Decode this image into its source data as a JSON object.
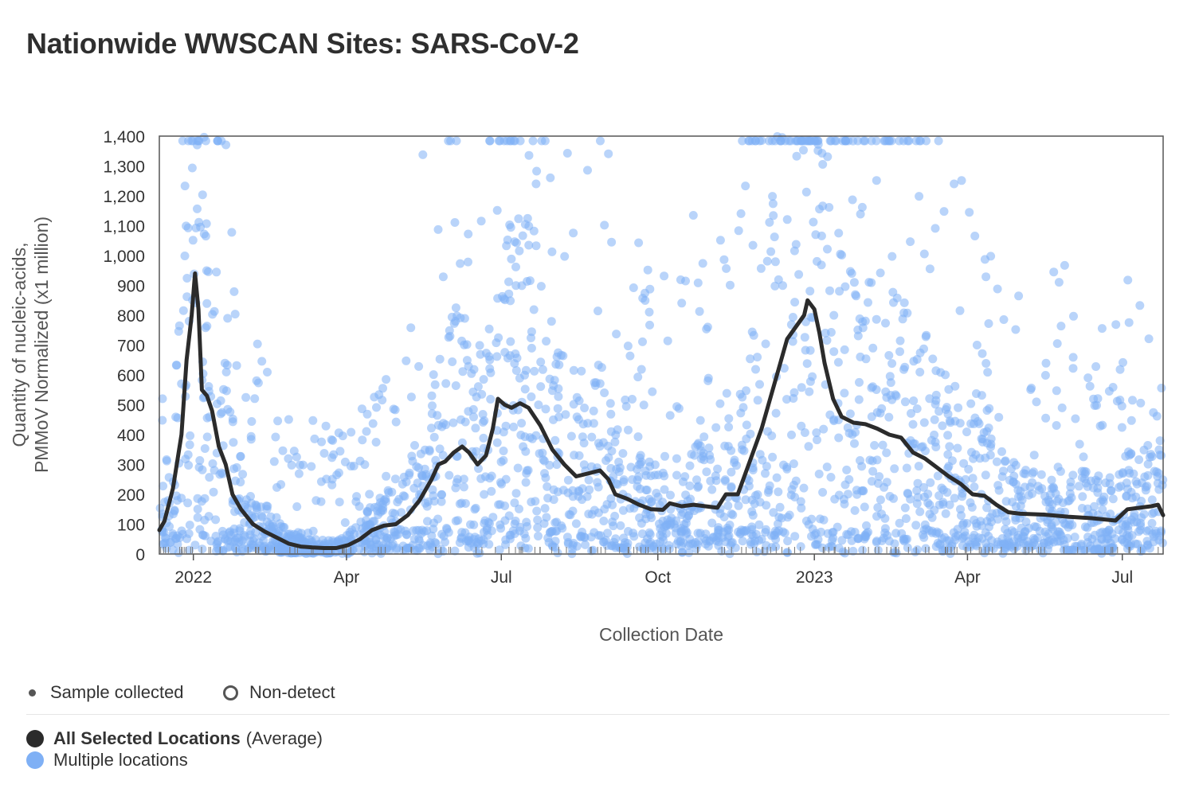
{
  "title": "Nationwide WWSCAN Sites: SARS-CoV-2",
  "colors": {
    "average_line": "#2b2b2b",
    "points": "#7fb0f5",
    "axis": "#333333",
    "nondetect_tick": "#777777"
  },
  "legend": {
    "sample_collected": "Sample collected",
    "non_detect": "Non-detect",
    "average_bold": "All Selected Locations",
    "average_suffix": "(Average)",
    "multiple": "Multiple locations"
  },
  "chart_data": {
    "type": "line",
    "title": "Nationwide WWSCAN Sites: SARS-CoV-2",
    "xlabel": "Collection Date",
    "ylabel": "Quantity of nucleic-acids, PMMoV Normalized (x1 million)",
    "ylabel_lines": [
      "Quantity of nucleic-acids,",
      "PMMoV Normalized (x1 million)"
    ],
    "x_range": [
      "2021-12-12",
      "2023-07-25"
    ],
    "ylim": [
      0,
      1400
    ],
    "y_ticks": [
      0,
      100,
      200,
      300,
      400,
      500,
      600,
      700,
      800,
      900,
      1000,
      1100,
      1200,
      1300,
      1400
    ],
    "y_tick_labels": [
      "0",
      "100",
      "200",
      "300",
      "400",
      "500",
      "600",
      "700",
      "800",
      "900",
      "1,000",
      "1,100",
      "1,200",
      "1,300",
      "1,400"
    ],
    "x_ticks": [
      {
        "date": "2022-01-01",
        "label": "2022"
      },
      {
        "date": "2022-04-01",
        "label": "Apr"
      },
      {
        "date": "2022-07-01",
        "label": "Jul"
      },
      {
        "date": "2022-10-01",
        "label": "Oct"
      },
      {
        "date": "2023-01-01",
        "label": "2023"
      },
      {
        "date": "2023-04-01",
        "label": "Apr"
      },
      {
        "date": "2023-07-01",
        "label": "Jul"
      }
    ],
    "series": [
      {
        "name": "All Selected Locations (Average)",
        "style": "line",
        "points": [
          [
            "2021-12-12",
            80
          ],
          [
            "2021-12-15",
            110
          ],
          [
            "2021-12-20",
            220
          ],
          [
            "2021-12-25",
            400
          ],
          [
            "2021-12-28",
            650
          ],
          [
            "2021-12-31",
            800
          ],
          [
            "2022-01-02",
            940
          ],
          [
            "2022-01-04",
            820
          ],
          [
            "2022-01-06",
            550
          ],
          [
            "2022-01-09",
            530
          ],
          [
            "2022-01-12",
            480
          ],
          [
            "2022-01-16",
            360
          ],
          [
            "2022-01-20",
            300
          ],
          [
            "2022-01-24",
            200
          ],
          [
            "2022-01-29",
            150
          ],
          [
            "2022-02-05",
            100
          ],
          [
            "2022-02-12",
            75
          ],
          [
            "2022-02-19",
            55
          ],
          [
            "2022-02-26",
            35
          ],
          [
            "2022-03-05",
            25
          ],
          [
            "2022-03-12",
            22
          ],
          [
            "2022-03-19",
            20
          ],
          [
            "2022-03-26",
            20
          ],
          [
            "2022-04-02",
            30
          ],
          [
            "2022-04-09",
            50
          ],
          [
            "2022-04-16",
            80
          ],
          [
            "2022-04-23",
            95
          ],
          [
            "2022-04-30",
            100
          ],
          [
            "2022-05-07",
            130
          ],
          [
            "2022-05-14",
            180
          ],
          [
            "2022-05-21",
            250
          ],
          [
            "2022-05-25",
            300
          ],
          [
            "2022-05-29",
            310
          ],
          [
            "2022-06-03",
            340
          ],
          [
            "2022-06-08",
            360
          ],
          [
            "2022-06-12",
            340
          ],
          [
            "2022-06-17",
            300
          ],
          [
            "2022-06-22",
            330
          ],
          [
            "2022-06-26",
            420
          ],
          [
            "2022-06-29",
            520
          ],
          [
            "2022-07-03",
            500
          ],
          [
            "2022-07-07",
            490
          ],
          [
            "2022-07-12",
            505
          ],
          [
            "2022-07-17",
            490
          ],
          [
            "2022-07-24",
            430
          ],
          [
            "2022-07-31",
            350
          ],
          [
            "2022-08-07",
            300
          ],
          [
            "2022-08-14",
            260
          ],
          [
            "2022-08-21",
            270
          ],
          [
            "2022-08-28",
            280
          ],
          [
            "2022-09-02",
            250
          ],
          [
            "2022-09-06",
            200
          ],
          [
            "2022-09-13",
            185
          ],
          [
            "2022-09-20",
            165
          ],
          [
            "2022-09-27",
            150
          ],
          [
            "2022-10-04",
            148
          ],
          [
            "2022-10-08",
            170
          ],
          [
            "2022-10-15",
            160
          ],
          [
            "2022-10-22",
            165
          ],
          [
            "2022-10-29",
            160
          ],
          [
            "2022-11-05",
            155
          ],
          [
            "2022-11-10",
            200
          ],
          [
            "2022-11-17",
            200
          ],
          [
            "2022-11-24",
            310
          ],
          [
            "2022-12-01",
            420
          ],
          [
            "2022-12-06",
            520
          ],
          [
            "2022-12-11",
            620
          ],
          [
            "2022-12-16",
            720
          ],
          [
            "2022-12-21",
            760
          ],
          [
            "2022-12-26",
            800
          ],
          [
            "2022-12-28",
            850
          ],
          [
            "2023-01-01",
            820
          ],
          [
            "2023-01-04",
            740
          ],
          [
            "2023-01-07",
            640
          ],
          [
            "2023-01-12",
            520
          ],
          [
            "2023-01-17",
            460
          ],
          [
            "2023-01-24",
            440
          ],
          [
            "2023-01-31",
            435
          ],
          [
            "2023-02-07",
            420
          ],
          [
            "2023-02-14",
            400
          ],
          [
            "2023-02-21",
            390
          ],
          [
            "2023-02-28",
            340
          ],
          [
            "2023-03-07",
            320
          ],
          [
            "2023-03-14",
            290
          ],
          [
            "2023-03-21",
            260
          ],
          [
            "2023-03-28",
            235
          ],
          [
            "2023-04-04",
            200
          ],
          [
            "2023-04-11",
            195
          ],
          [
            "2023-04-18",
            165
          ],
          [
            "2023-04-25",
            140
          ],
          [
            "2023-05-02",
            135
          ],
          [
            "2023-05-16",
            132
          ],
          [
            "2023-05-30",
            125
          ],
          [
            "2023-06-13",
            120
          ],
          [
            "2023-06-27",
            112
          ],
          [
            "2023-07-04",
            150
          ],
          [
            "2023-07-11",
            155
          ],
          [
            "2023-07-18",
            160
          ],
          [
            "2023-07-22",
            165
          ],
          [
            "2023-07-25",
            130
          ]
        ]
      },
      {
        "name": "Multiple locations",
        "style": "scatter",
        "description": "Individual site samples scattered from 0 to above 1,400 around the average; points above 1,400 are clipped at the top edge."
      }
    ],
    "legend": [
      "Sample collected",
      "Non-detect",
      "All Selected Locations (Average)",
      "Multiple locations"
    ]
  }
}
